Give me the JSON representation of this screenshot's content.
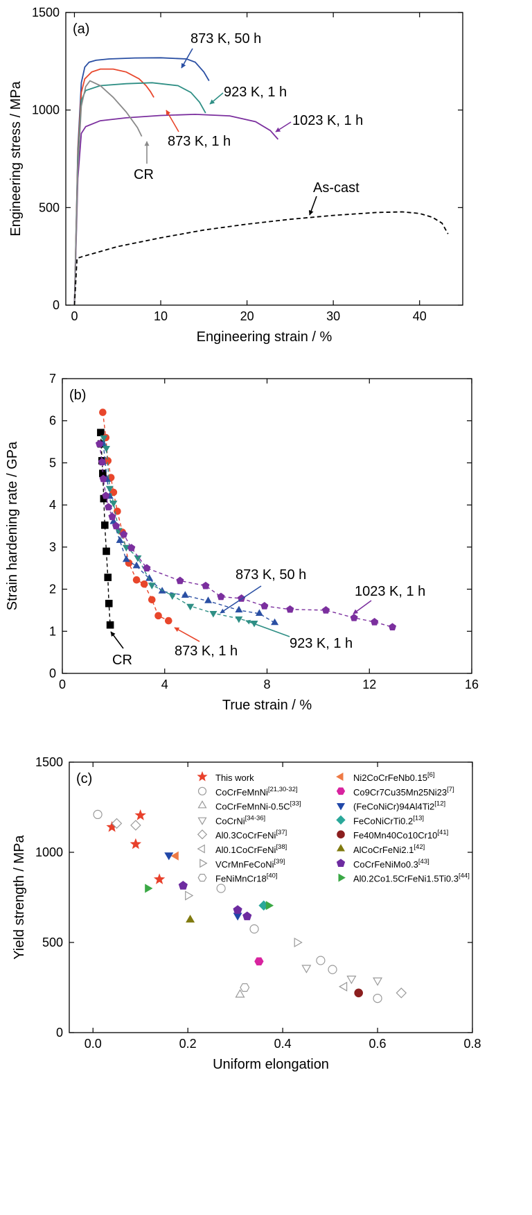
{
  "chart_data": [
    {
      "type": "line",
      "panel_label": "(a)",
      "xlabel": "Engineering strain / %",
      "ylabel": "Engineering stress / MPa",
      "xlim": [
        -1,
        45
      ],
      "ylim": [
        0,
        1500
      ],
      "xticks": [
        "0",
        "10",
        "20",
        "30",
        "40"
      ],
      "yticks": [
        "0",
        "500",
        "1000",
        "1500"
      ],
      "xtick_values": [
        0,
        10,
        20,
        30,
        40
      ],
      "ytick_values": [
        0,
        500,
        1000,
        1500
      ],
      "series": [
        {
          "name": "873 K, 50 h",
          "color": "#2a4fa3",
          "dashed": false,
          "x": [
            0,
            0.4,
            0.8,
            1.2,
            1.7,
            2.5,
            4,
            7,
            10,
            13,
            14,
            15,
            15.6
          ],
          "y": [
            0,
            800,
            1140,
            1220,
            1245,
            1255,
            1262,
            1267,
            1268,
            1262,
            1245,
            1195,
            1150
          ]
        },
        {
          "name": "873 K, 1 h",
          "color": "#e8462b",
          "dashed": false,
          "x": [
            0,
            0.4,
            0.8,
            1.2,
            2,
            3,
            4.5,
            6,
            7.5,
            8.3,
            8.8,
            9.2
          ],
          "y": [
            0,
            780,
            1090,
            1160,
            1195,
            1210,
            1210,
            1195,
            1160,
            1125,
            1095,
            1065
          ]
        },
        {
          "name": "923 K, 1 h",
          "color": "#2f8f85",
          "dashed": false,
          "x": [
            0,
            0.4,
            0.8,
            1.3,
            3,
            6,
            9,
            12,
            13.5,
            14.5,
            15.2
          ],
          "y": [
            0,
            750,
            1050,
            1100,
            1125,
            1135,
            1140,
            1125,
            1090,
            1040,
            985
          ]
        },
        {
          "name": "1023 K, 1 h",
          "color": "#7b2f9e",
          "dashed": false,
          "x": [
            0,
            0.4,
            0.8,
            1.3,
            3,
            6,
            10,
            14,
            18,
            21,
            22.7,
            23.6
          ],
          "y": [
            0,
            650,
            880,
            915,
            945,
            960,
            972,
            978,
            970,
            940,
            895,
            850
          ]
        },
        {
          "name": "CR",
          "color": "#8a8a8a",
          "dashed": false,
          "x": [
            0,
            0.4,
            0.8,
            1.3,
            1.8,
            3,
            4.5,
            6,
            7.3,
            7.8
          ],
          "y": [
            0,
            700,
            1020,
            1120,
            1150,
            1125,
            1065,
            990,
            910,
            865
          ]
        },
        {
          "name": "As-cast",
          "color": "#000000",
          "dashed": true,
          "x": [
            0,
            0.3,
            1,
            5,
            10,
            15,
            20,
            25,
            30,
            35,
            38,
            40,
            41.5,
            42.6,
            43.3
          ],
          "y": [
            0,
            240,
            250,
            300,
            345,
            385,
            415,
            440,
            460,
            475,
            478,
            470,
            450,
            420,
            365
          ]
        }
      ],
      "annotations": [
        {
          "text": "873 K, 50 h",
          "color": "#2a4fa3"
        },
        {
          "text": "923 K, 1 h",
          "color": "#2f8f85"
        },
        {
          "text": "1023 K, 1 h",
          "color": "#7b2f9e"
        },
        {
          "text": "873 K, 1 h",
          "color": "#e8462b"
        },
        {
          "text": "CR",
          "color": "#8a8a8a"
        },
        {
          "text": "As-cast",
          "color": "#000000"
        }
      ]
    },
    {
      "type": "scatter",
      "panel_label": "(b)",
      "xlabel": "True strain / %",
      "ylabel": "Strain hardening rate / GPa",
      "xlim": [
        0,
        16
      ],
      "ylim": [
        0,
        7
      ],
      "xticks": [
        "0",
        "4",
        "8",
        "12",
        "16"
      ],
      "yticks": [
        "0",
        "1",
        "2",
        "3",
        "4",
        "5",
        "6",
        "7"
      ],
      "xtick_values": [
        0,
        4,
        8,
        12,
        16
      ],
      "ytick_values": [
        0,
        1,
        2,
        3,
        4,
        5,
        6,
        7
      ],
      "series": [
        {
          "name": "CR",
          "color": "#000000",
          "marker": "square",
          "x": [
            1.5,
            1.52,
            1.55,
            1.58,
            1.62,
            1.66,
            1.72,
            1.78,
            1.82,
            1.87
          ],
          "y": [
            5.72,
            5.45,
            5.05,
            4.75,
            4.15,
            3.52,
            2.9,
            2.28,
            1.66,
            1.15
          ]
        },
        {
          "name": "873 K, 1 h",
          "color": "#e8462b",
          "marker": "circle",
          "x": [
            1.58,
            1.7,
            1.78,
            1.9,
            2.0,
            2.15,
            2.35,
            2.6,
            2.9,
            3.2,
            3.5,
            3.75,
            4.15
          ],
          "y": [
            6.2,
            5.6,
            5.05,
            4.65,
            4.3,
            3.85,
            3.35,
            2.62,
            2.22,
            2.12,
            1.75,
            1.37,
            1.25
          ]
        },
        {
          "name": "873 K, 50 h",
          "color": "#2a4fa3",
          "marker": "triangle-up",
          "x": [
            1.6,
            1.75,
            1.85,
            2.0,
            2.25,
            2.5,
            2.9,
            3.4,
            3.9,
            4.8,
            5.7,
            6.9,
            7.7,
            8.3
          ],
          "y": [
            5.45,
            4.6,
            4.2,
            3.6,
            3.15,
            2.7,
            2.55,
            2.25,
            1.95,
            1.85,
            1.72,
            1.5,
            1.42,
            1.2
          ]
        },
        {
          "name": "923 K, 1 h",
          "color": "#2f8f85",
          "marker": "triangle-down",
          "x": [
            1.62,
            1.72,
            1.85,
            2.0,
            2.2,
            2.5,
            2.95,
            3.5,
            4.3,
            5.0,
            5.9,
            6.9,
            7.5
          ],
          "y": [
            5.6,
            5.35,
            4.4,
            4.05,
            3.4,
            3.0,
            2.75,
            2.1,
            1.85,
            1.6,
            1.43,
            1.3,
            1.2
          ]
        },
        {
          "name": "1023 K, 1 h",
          "color": "#7b2f9e",
          "marker": "pentagon",
          "x": [
            1.45,
            1.55,
            1.6,
            1.7,
            1.8,
            1.95,
            2.1,
            2.4,
            2.7,
            3.3,
            4.6,
            5.6,
            6.2,
            7.0,
            7.9,
            8.9,
            10.3,
            11.4,
            12.2,
            12.9
          ],
          "y": [
            5.45,
            5.02,
            4.62,
            4.22,
            3.95,
            3.72,
            3.5,
            3.3,
            2.98,
            2.5,
            2.2,
            2.08,
            1.82,
            1.78,
            1.6,
            1.52,
            1.5,
            1.32,
            1.22,
            1.1
          ]
        }
      ],
      "annotations": [
        {
          "text": "873 K, 50 h",
          "color": "#2a4fa3"
        },
        {
          "text": "1023 K, 1 h",
          "color": "#7b2f9e"
        },
        {
          "text": "873 K, 1 h",
          "color": "#e8462b"
        },
        {
          "text": "923 K, 1 h",
          "color": "#2f8f85"
        },
        {
          "text": "CR",
          "color": "#000000"
        }
      ]
    },
    {
      "type": "scatter",
      "panel_label": "(c)",
      "xlabel": "Uniform elongation",
      "ylabel": "Yield strength / MPa",
      "xlim": [
        -0.05,
        0.8
      ],
      "ylim": [
        0,
        1500
      ],
      "xticks": [
        "0.0",
        "0.2",
        "0.4",
        "0.6",
        "0.8"
      ],
      "yticks": [
        "0",
        "500",
        "1000",
        "1500"
      ],
      "xtick_values": [
        0,
        0.2,
        0.4,
        0.6,
        0.8
      ],
      "ytick_values": [
        0,
        500,
        1000,
        1500
      ],
      "series": [
        {
          "name": "This work",
          "ref": "",
          "color": "#e8402b",
          "marker": "star",
          "filled": true,
          "x": [
            0.04,
            0.1,
            0.09,
            0.14
          ],
          "y": [
            1140,
            1205,
            1045,
            850
          ]
        },
        {
          "name": "CoCrFeMnNi",
          "ref": "[21,30-32]",
          "color": "#9a9a9a",
          "marker": "circle",
          "filled": false,
          "x": [
            0.01,
            0.27,
            0.34,
            0.48,
            0.505,
            0.6
          ],
          "y": [
            1210,
            800,
            575,
            400,
            350,
            190
          ]
        },
        {
          "name": "CoCrFeMnNi-0.5C",
          "ref": "[33]",
          "color": "#9a9a9a",
          "marker": "triangle-up",
          "filled": false,
          "x": [
            0.31
          ],
          "y": [
            210
          ]
        },
        {
          "name": "CoCrNi",
          "ref": "[34-36]",
          "color": "#9a9a9a",
          "marker": "triangle-down",
          "filled": false,
          "x": [
            0.45,
            0.545,
            0.6
          ],
          "y": [
            360,
            300,
            290
          ]
        },
        {
          "name": "Al0.3CoCrFeNi",
          "ref": "[37]",
          "color": "#9a9a9a",
          "marker": "diamond",
          "filled": false,
          "x": [
            0.05,
            0.09,
            0.65
          ],
          "y": [
            1160,
            1150,
            220
          ]
        },
        {
          "name": "Al0.1CoCrFeNi",
          "ref": "[38]",
          "color": "#9a9a9a",
          "marker": "triangle-left",
          "filled": false,
          "x": [
            0.53
          ],
          "y": [
            255
          ]
        },
        {
          "name": "VCrMnFeCoNi",
          "ref": "[39]",
          "color": "#9a9a9a",
          "marker": "triangle-right",
          "filled": false,
          "x": [
            0.2,
            0.43
          ],
          "y": [
            760,
            500
          ]
        },
        {
          "name": "FeNiMnCr18",
          "ref": "[40]",
          "color": "#9a9a9a",
          "marker": "hexagon",
          "filled": false,
          "x": [
            0.32
          ],
          "y": [
            250
          ]
        },
        {
          "name": "Ni2CoCrFeNb0.15",
          "ref": "[6]",
          "color": "#ee7a45",
          "marker": "triangle-left",
          "filled": true,
          "x": [
            0.175
          ],
          "y": [
            980
          ]
        },
        {
          "name": "Co9Cr7Cu35Mn25Ni23",
          "ref": "[7]",
          "color": "#d8239f",
          "marker": "hexagon",
          "filled": true,
          "x": [
            0.35
          ],
          "y": [
            395
          ]
        },
        {
          "name": "(FeCoNiCr)94Al4Ti2",
          "ref": "[12]",
          "color": "#2047a8",
          "marker": "triangle-down",
          "filled": true,
          "x": [
            0.16,
            0.305
          ],
          "y": [
            985,
            650
          ]
        },
        {
          "name": "FeCoNiCrTi0.2",
          "ref": "[13]",
          "color": "#2aa89a",
          "marker": "diamond",
          "filled": true,
          "x": [
            0.36
          ],
          "y": [
            705
          ]
        },
        {
          "name": "Fe40Mn40Co10Cr10",
          "ref": "[41]",
          "color": "#8b1e1e",
          "marker": "circle",
          "filled": true,
          "x": [
            0.56
          ],
          "y": [
            220
          ]
        },
        {
          "name": "AlCoCrFeNi2.1",
          "ref": "[42]",
          "color": "#807a0f",
          "marker": "triangle-up",
          "filled": true,
          "x": [
            0.205
          ],
          "y": [
            625
          ]
        },
        {
          "name": "CoCrFeNiMo0.3",
          "ref": "[43]",
          "color": "#6d2ba0",
          "marker": "pentagon",
          "filled": true,
          "x": [
            0.19,
            0.305,
            0.325
          ],
          "y": [
            815,
            680,
            645
          ]
        },
        {
          "name": "Al0.2Co1.5CrFeNi1.5Ti0.3",
          "ref": "[44]",
          "color": "#3aa845",
          "marker": "triangle-right",
          "filled": true,
          "x": [
            0.115,
            0.37
          ],
          "y": [
            800,
            705
          ]
        }
      ]
    }
  ]
}
